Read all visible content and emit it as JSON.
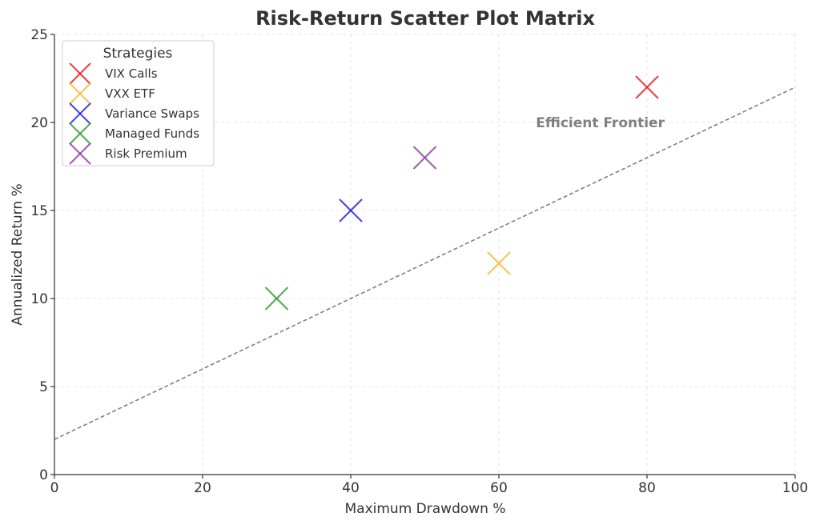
{
  "chart_data": {
    "type": "scatter",
    "title": "Risk-Return Scatter Plot Matrix",
    "xlabel": "Maximum Drawdown %",
    "ylabel": "Annualized Return %",
    "xlim": [
      0,
      100
    ],
    "ylim": [
      0,
      25
    ],
    "xticks": [
      0,
      20,
      40,
      60,
      80,
      100
    ],
    "yticks": [
      0,
      5,
      10,
      15,
      20,
      25
    ],
    "grid": true,
    "legend": {
      "title": "Strategies",
      "placement": "top-left"
    },
    "marker": "x",
    "series": [
      {
        "name": "VIX Calls",
        "color": "#e41a1c",
        "points": [
          {
            "x": 80,
            "y": 22
          }
        ]
      },
      {
        "name": "VXX ETF",
        "color": "#f7b733",
        "points": [
          {
            "x": 60,
            "y": 12
          }
        ]
      },
      {
        "name": "Variance Swaps",
        "color": "#1f1fe6",
        "points": [
          {
            "x": 40,
            "y": 15
          }
        ]
      },
      {
        "name": "Managed Funds",
        "color": "#2e9a2e",
        "points": [
          {
            "x": 30,
            "y": 10
          }
        ]
      },
      {
        "name": "Risk Premium",
        "color": "#8e3b9e",
        "points": [
          {
            "x": 50,
            "y": 18
          }
        ]
      }
    ],
    "frontier": {
      "style": "dashed",
      "color": "#808080",
      "points": [
        {
          "x": 0,
          "y": 2
        },
        {
          "x": 100,
          "y": 22
        }
      ]
    },
    "annotations": [
      {
        "text": "Efficient Frontier",
        "x": 65,
        "y": 20,
        "color": "#808080"
      }
    ]
  }
}
